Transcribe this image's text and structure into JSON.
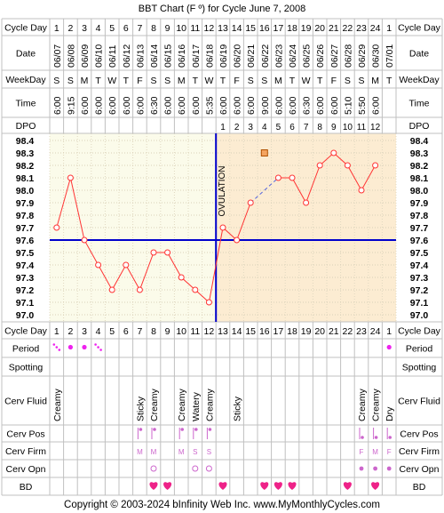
{
  "title": "BBT Chart (F º) for Cycle June 7, 2008",
  "footer": "Copyright © 2003-2024 bInfinity Web Inc.    www.MyMonthlyCycles.com",
  "row_labels": {
    "cycle_day": "Cycle Day",
    "date": "Date",
    "weekday": "WeekDay",
    "time": "Time",
    "dpo": "DPO",
    "period": "Period",
    "spotting": "Spotting",
    "cerv_fluid": "Cerv Fluid",
    "cerv_pos": "Cerv Pos",
    "cerv_firm": "Cerv Firm",
    "cerv_opn": "Cerv Opn",
    "bd": "BD"
  },
  "ovulation_label": "OVULATION",
  "colors": {
    "grid": "#c0c0c0",
    "follicular_bg": "#fbfbea",
    "luteal_bg": "#fcecd2",
    "temp_line": "#ff3333",
    "coverline": "#0000cc",
    "period": "#ee22ee",
    "heart": "#ee2288",
    "marker": "#cc66cc",
    "dashed": "#5566dd",
    "highlight": "#f4a460"
  },
  "chart_data": {
    "type": "line",
    "title": "BBT Chart (F º) for Cycle June 7, 2008",
    "ylim": [
      97.0,
      98.4
    ],
    "y_ticks": [
      "98.4",
      "98.3",
      "98.2",
      "98.1",
      "98.0",
      "97.9",
      "97.8",
      "97.7",
      "97.6",
      "97.5",
      "97.4",
      "97.3",
      "97.2",
      "97.1",
      "97.0"
    ],
    "cycle_days": [
      1,
      2,
      3,
      4,
      5,
      6,
      7,
      8,
      9,
      10,
      11,
      12,
      13,
      14,
      15,
      16,
      17,
      18,
      19,
      20,
      21,
      22,
      23,
      24,
      1
    ],
    "dates": [
      "06/07",
      "06/08",
      "06/09",
      "06/10",
      "06/11",
      "06/12",
      "06/13",
      "06/14",
      "06/15",
      "06/16",
      "06/17",
      "06/18",
      "06/19",
      "06/20",
      "06/21",
      "06/22",
      "06/23",
      "06/24",
      "06/25",
      "06/26",
      "06/27",
      "06/28",
      "06/29",
      "06/30",
      "07/01"
    ],
    "weekdays": [
      "S",
      "S",
      "M",
      "T",
      "W",
      "T",
      "F",
      "S",
      "S",
      "M",
      "T",
      "W",
      "T",
      "F",
      "S",
      "S",
      "M",
      "T",
      "W",
      "T",
      "F",
      "S",
      "S",
      "M",
      "T"
    ],
    "times": [
      "6:00",
      "9:15",
      "6:00",
      "6:00",
      "6:00",
      "6:00",
      "6:00",
      "6:30",
      "6:00",
      "6:00",
      "6:00",
      "5:35",
      "6:00",
      "6:00",
      "6:00",
      "9:00",
      "6:00",
      "6:00",
      "6:30",
      "6:00",
      "6:00",
      "5:10",
      "5:50",
      "6:00",
      ""
    ],
    "dpo": [
      "",
      "",
      "",
      "",
      "",
      "",
      "",
      "",
      "",
      "",
      "",
      "",
      "1",
      "2",
      "3",
      "4",
      "5",
      "6",
      "7",
      "8",
      "9",
      "10",
      "11",
      "12",
      ""
    ],
    "temps": [
      97.7,
      98.1,
      97.6,
      97.4,
      97.2,
      97.4,
      97.2,
      97.5,
      97.5,
      97.3,
      97.2,
      97.1,
      97.7,
      97.6,
      97.9,
      null,
      98.1,
      98.1,
      97.9,
      98.2,
      98.3,
      98.2,
      98.0,
      98.2,
      null
    ],
    "excluded_temp": {
      "day_index": 15,
      "value": 98.3
    },
    "coverline": 97.6,
    "ovulation_after_day": 12,
    "period": [
      "dots",
      "dot",
      "dot",
      "dots",
      "",
      "",
      "",
      "",
      "",
      "",
      "",
      "",
      "",
      "",
      "",
      "",
      "",
      "",
      "",
      "",
      "",
      "",
      "",
      "",
      "dot"
    ],
    "spotting": [
      "",
      "",
      "",
      "",
      "",
      "",
      "",
      "",
      "",
      "",
      "",
      "",
      "",
      "",
      "",
      "",
      "",
      "",
      "",
      "",
      "",
      "",
      "",
      "",
      ""
    ],
    "cerv_fluid": [
      "Creamy",
      "",
      "",
      "",
      "",
      "",
      "Sticky",
      "Creamy",
      "",
      "Creamy",
      "Watery",
      "Creamy",
      "",
      "Sticky",
      "",
      "",
      "",
      "",
      "",
      "",
      "",
      "",
      "Creamy",
      "Creamy",
      "Dry"
    ],
    "cerv_pos": [
      "",
      "",
      "",
      "",
      "",
      "",
      "H",
      "H",
      "",
      "H",
      "H",
      "H",
      "",
      "",
      "",
      "",
      "",
      "",
      "",
      "",
      "",
      "",
      "L",
      "L",
      "L"
    ],
    "cerv_firm": [
      "",
      "",
      "",
      "",
      "",
      "",
      "M",
      "M",
      "",
      "M",
      "S",
      "S",
      "",
      "",
      "",
      "",
      "",
      "",
      "",
      "",
      "",
      "",
      "F",
      "M",
      "F"
    ],
    "cerv_opn": [
      "",
      "",
      "",
      "",
      "",
      "",
      "",
      "O",
      "",
      "",
      "O",
      "O",
      "",
      "",
      "",
      "",
      "",
      "",
      "",
      "",
      "",
      "",
      "o",
      "o",
      "o"
    ],
    "bd": [
      false,
      false,
      false,
      false,
      false,
      false,
      false,
      true,
      true,
      false,
      false,
      false,
      true,
      false,
      false,
      true,
      true,
      true,
      false,
      false,
      false,
      true,
      false,
      true,
      false
    ]
  }
}
